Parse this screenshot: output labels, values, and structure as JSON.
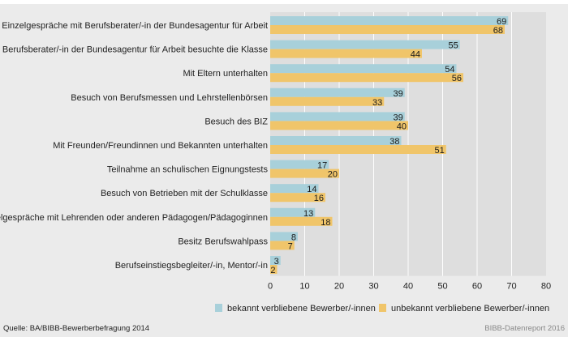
{
  "chart_data": {
    "type": "bar",
    "orientation": "horizontal",
    "categories": [
      "Einzelgespräche mit Berufsberater/-in der Bundesagentur für Arbeit",
      "Berufsberater/-in der Bundesagentur für Arbeit besuchte die Klasse",
      "Mit Eltern unterhalten",
      "Besuch von Berufsmessen und Lehrstellenbörsen",
      "Besuch des BIZ",
      "Mit Freunden/Freundinnen und Bekannten unterhalten",
      "Teilnahme an schulischen Eignungstests",
      "Besuch von Betrieben mit der Schulklasse",
      "Einzelgespräche mit Lehrenden oder anderen Pädagogen/Pädagoginnen",
      "Besitz Berufswahlpass",
      "Berufseinstiegsbegleiter/-in, Mentor/-in"
    ],
    "series": [
      {
        "name": "bekannt verbliebene Bewerber/-innen",
        "color": "#a8d0da",
        "values": [
          69,
          55,
          54,
          39,
          39,
          38,
          17,
          14,
          13,
          8,
          3
        ]
      },
      {
        "name": "unbekannt verbliebene Bewerber/-innen",
        "color": "#f0c56a",
        "values": [
          68,
          44,
          56,
          33,
          40,
          51,
          20,
          16,
          18,
          7,
          2
        ]
      }
    ],
    "xlim": [
      0,
      80
    ],
    "xticks": [
      "0",
      "10",
      "20",
      "30",
      "40",
      "50",
      "60",
      "70",
      "80"
    ],
    "grid": true,
    "legend_position": "bottom",
    "data_labels": true
  },
  "footer": {
    "source": "Quelle: BA/BIBB-Bewerberbefragung 2014",
    "brand": "BIBB-Datenreport 2016"
  }
}
